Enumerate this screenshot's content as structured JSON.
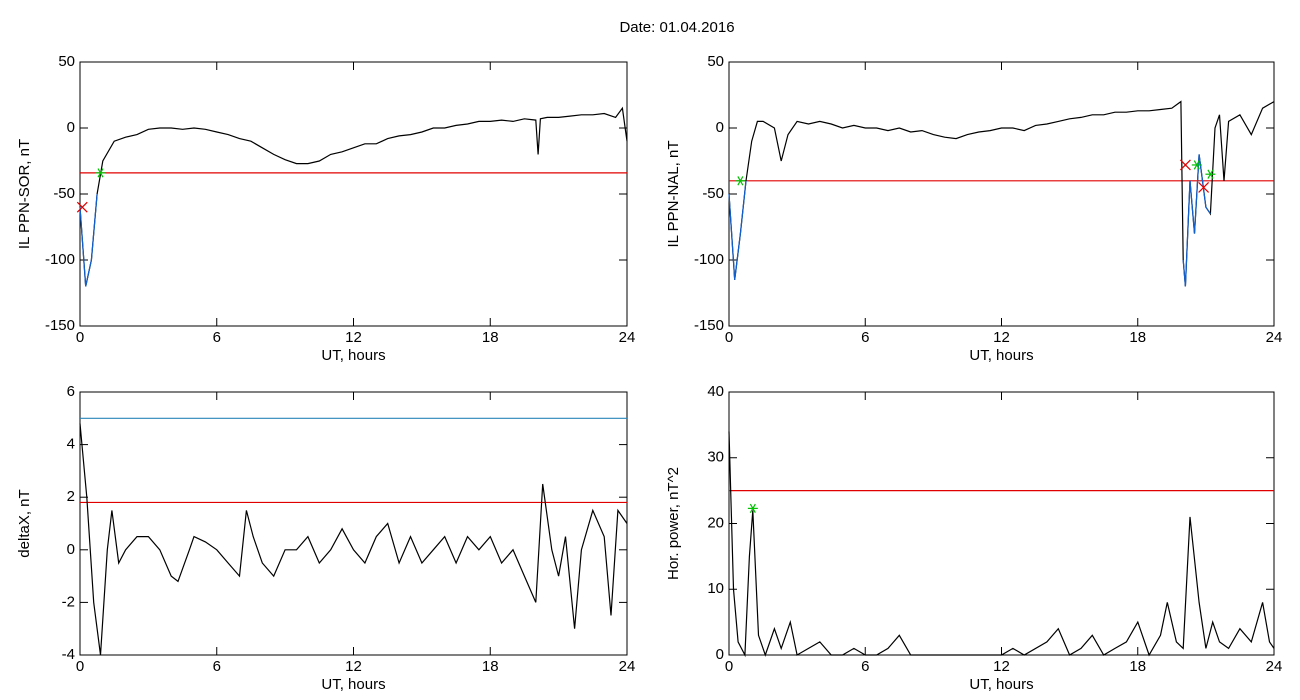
{
  "title": "Date:  01.04.2016",
  "chart_data": [
    {
      "type": "line",
      "xlabel": "UT, hours",
      "ylabel": "IL PPN-SOR, nT",
      "xlim": [
        0,
        24
      ],
      "ylim": [
        -150,
        50
      ],
      "xticks": [
        0,
        6,
        12,
        18,
        24
      ],
      "yticks": [
        -150,
        -100,
        -50,
        0,
        50
      ],
      "series": [
        {
          "color": "#000000",
          "x": [
            0,
            0.25,
            0.5,
            0.75,
            1,
            1.5,
            2,
            2.5,
            3,
            3.5,
            4,
            4.5,
            5,
            5.5,
            6,
            6.5,
            7,
            7.5,
            8,
            8.5,
            9,
            9.5,
            10,
            10.5,
            11,
            11.5,
            12,
            12.5,
            13,
            13.5,
            14,
            14.5,
            15,
            15.5,
            16,
            16.5,
            17,
            17.5,
            18,
            18.5,
            19,
            19.5,
            20,
            20.1,
            20.2,
            20.5,
            21,
            21.5,
            22,
            22.5,
            23,
            23.5,
            23.8,
            24
          ],
          "values": [
            -60,
            -120,
            -100,
            -50,
            -25,
            -10,
            -7,
            -5,
            -1,
            0,
            0,
            -1,
            0,
            -1,
            -3,
            -5,
            -8,
            -10,
            -15,
            -20,
            -24,
            -27,
            -27,
            -25,
            -20,
            -18,
            -15,
            -12,
            -12,
            -8,
            -6,
            -5,
            -3,
            0,
            0,
            2,
            3,
            5,
            5,
            6,
            5,
            7,
            6,
            -20,
            7,
            8,
            8,
            9,
            10,
            10,
            11,
            8,
            15,
            -10
          ]
        },
        {
          "color": "#1060d0",
          "x": [
            0,
            0.25,
            0.5,
            0.75
          ],
          "values": [
            -60,
            -120,
            -100,
            -50
          ]
        }
      ],
      "hlines": [
        {
          "value": -34,
          "color": "#e00000"
        }
      ],
      "markers": [
        {
          "x": 0.1,
          "y": -60,
          "symbol": "x",
          "color": "#e00000"
        },
        {
          "x": 0.9,
          "y": -34,
          "symbol": "*",
          "color": "#00c000"
        }
      ]
    },
    {
      "type": "line",
      "xlabel": "UT, hours",
      "ylabel": "IL PPN-NAL, nT",
      "xlim": [
        0,
        24
      ],
      "ylim": [
        -150,
        50
      ],
      "xticks": [
        0,
        6,
        12,
        18,
        24
      ],
      "yticks": [
        -150,
        -100,
        -50,
        0,
        50
      ],
      "series": [
        {
          "color": "#000000",
          "x": [
            0,
            0.25,
            0.5,
            0.75,
            1,
            1.25,
            1.5,
            2,
            2.3,
            2.6,
            3,
            3.5,
            4,
            4.5,
            5,
            5.5,
            6,
            6.5,
            7,
            7.5,
            8,
            8.5,
            9,
            9.5,
            10,
            10.5,
            11,
            11.5,
            12,
            12.5,
            13,
            13.5,
            14,
            14.5,
            15,
            15.5,
            16,
            16.5,
            17,
            17.5,
            18,
            18.5,
            19,
            19.5,
            19.9,
            20,
            20.1,
            20.3,
            20.5,
            20.7,
            21,
            21.2,
            21.4,
            21.6,
            21.8,
            22,
            22.5,
            23,
            23.5,
            24
          ],
          "values": [
            -50,
            -115,
            -80,
            -40,
            -10,
            5,
            5,
            0,
            -25,
            -5,
            5,
            3,
            5,
            3,
            0,
            2,
            0,
            0,
            -2,
            0,
            -3,
            -2,
            -5,
            -7,
            -8,
            -5,
            -3,
            -2,
            0,
            0,
            -2,
            2,
            3,
            5,
            7,
            8,
            10,
            10,
            12,
            12,
            13,
            13,
            14,
            15,
            20,
            -100,
            -120,
            -40,
            -80,
            -20,
            -60,
            -65,
            0,
            10,
            -40,
            5,
            10,
            -5,
            15,
            20
          ]
        },
        {
          "color": "#1060d0",
          "x": [
            0,
            0.25,
            0.5,
            0.75,
            10,
            20,
            20.1,
            20.3,
            20.5,
            20.7,
            21,
            21.2
          ],
          "values": [
            -50,
            -115,
            -80,
            -40,
            null,
            -100,
            -120,
            -40,
            -80,
            -20,
            -60,
            -65
          ]
        }
      ],
      "hlines": [
        {
          "value": -40,
          "color": "#e00000"
        }
      ],
      "markers": [
        {
          "x": 0.5,
          "y": -40,
          "symbol": "*",
          "color": "#00c000"
        },
        {
          "x": 20.1,
          "y": -28,
          "symbol": "x",
          "color": "#e00000"
        },
        {
          "x": 20.6,
          "y": -28,
          "symbol": "*",
          "color": "#00c000"
        },
        {
          "x": 20.9,
          "y": -45,
          "symbol": "x",
          "color": "#e00000"
        },
        {
          "x": 21.2,
          "y": -35,
          "symbol": "*",
          "color": "#00c000"
        }
      ]
    },
    {
      "type": "line",
      "xlabel": "UT, hours",
      "ylabel": "deltaX, nT",
      "xlim": [
        0,
        24
      ],
      "ylim": [
        -4,
        6
      ],
      "xticks": [
        0,
        6,
        12,
        18,
        24
      ],
      "yticks": [
        -4,
        -2,
        0,
        2,
        4,
        6
      ],
      "series": [
        {
          "color": "#000000",
          "x": [
            0,
            0.3,
            0.6,
            0.9,
            1.2,
            1.4,
            1.7,
            2,
            2.5,
            3,
            3.5,
            4,
            4.3,
            4.8,
            5,
            5.5,
            6,
            6.5,
            7,
            7.3,
            7.6,
            8,
            8.5,
            9,
            9.5,
            10,
            10.5,
            11,
            11.5,
            12,
            12.5,
            13,
            13.5,
            14,
            14.5,
            15,
            15.5,
            16,
            16.5,
            17,
            17.5,
            18,
            18.5,
            19,
            19.5,
            20,
            20.3,
            20.7,
            21,
            21.3,
            21.7,
            22,
            22.5,
            23,
            23.3,
            23.6,
            24
          ],
          "values": [
            4.8,
            2,
            -2,
            -4,
            0,
            1.5,
            -0.5,
            0,
            0.5,
            0.5,
            0,
            -1,
            -1.2,
            0,
            0.5,
            0.3,
            0,
            -0.5,
            -1,
            1.5,
            0.5,
            -0.5,
            -1,
            0,
            0,
            0.5,
            -0.5,
            0,
            0.8,
            0,
            -0.5,
            0.5,
            1,
            -0.5,
            0.5,
            -0.5,
            0,
            0.5,
            -0.5,
            0.5,
            0,
            0.5,
            -0.5,
            0,
            -1,
            -2,
            2.5,
            0,
            -1,
            0.5,
            -3,
            0,
            1.5,
            0.5,
            -2.5,
            1.5,
            1
          ]
        }
      ],
      "hlines": [
        {
          "value": 5,
          "color": "#2a86b8"
        },
        {
          "value": 1.8,
          "color": "#e00000"
        }
      ],
      "markers": []
    },
    {
      "type": "line",
      "xlabel": "UT, hours",
      "ylabel": "Hor. power, nT^2",
      "xlim": [
        0,
        24
      ],
      "ylim": [
        0,
        40
      ],
      "xticks": [
        0,
        6,
        12,
        18,
        24
      ],
      "yticks": [
        0,
        10,
        20,
        30,
        40
      ],
      "series": [
        {
          "color": "#000000",
          "x": [
            0,
            0.2,
            0.4,
            0.7,
            0.9,
            1.05,
            1.3,
            1.6,
            2,
            2.3,
            2.7,
            3,
            3.5,
            4,
            4.5,
            5,
            5.5,
            6,
            6.5,
            7,
            7.5,
            8,
            9,
            10,
            11,
            12,
            12.5,
            13,
            14,
            14.5,
            15,
            15.5,
            16,
            16.5,
            17,
            17.5,
            18,
            18.5,
            19,
            19.3,
            19.7,
            20,
            20.3,
            20.7,
            21,
            21.3,
            21.6,
            22,
            22.5,
            23,
            23.5,
            23.8,
            24
          ],
          "values": [
            34,
            10,
            2,
            0,
            15,
            22,
            3,
            0,
            4,
            1,
            5,
            0,
            1,
            2,
            0,
            0,
            1,
            0,
            0,
            1,
            3,
            0,
            0,
            0,
            0,
            0,
            1,
            0,
            2,
            4,
            0,
            1,
            3,
            0,
            1,
            2,
            5,
            0,
            3,
            8,
            2,
            1,
            21,
            8,
            1,
            5,
            2,
            1,
            4,
            2,
            8,
            2,
            1
          ]
        }
      ],
      "hlines": [
        {
          "value": 25,
          "color": "#e00000"
        }
      ],
      "markers": [
        {
          "x": 1.05,
          "y": 22.3,
          "symbol": "*",
          "color": "#00c000"
        }
      ]
    }
  ]
}
